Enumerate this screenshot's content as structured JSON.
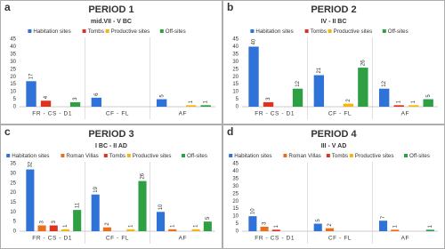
{
  "chart_data": [
    {
      "type": "bar",
      "label": "a",
      "title": "PERIOD 1",
      "subtitle": "mid.VII - V BC",
      "categories": [
        "FR - CS - D1",
        "CF - FL",
        "AF"
      ],
      "series": [
        {
          "name": "Habitation sites",
          "color": "#2f73d9",
          "values": [
            17,
            6,
            5
          ]
        },
        {
          "name": "Tombs",
          "color": "#e0301e",
          "values": [
            4,
            null,
            null
          ]
        },
        {
          "name": "Productive sites",
          "color": "#f5b50a",
          "values": [
            null,
            null,
            1
          ]
        },
        {
          "name": "Off-sites",
          "color": "#2ea043",
          "values": [
            3,
            null,
            1
          ]
        }
      ],
      "ylim": [
        0,
        45
      ],
      "yticks": [
        0,
        5,
        10,
        15,
        20,
        25,
        30,
        35,
        40,
        45
      ],
      "grid": false
    },
    {
      "type": "bar",
      "label": "b",
      "title": "PERIOD 2",
      "subtitle": "IV - II BC",
      "categories": [
        "FR - CS - D1",
        "CF - FL",
        "AF"
      ],
      "series": [
        {
          "name": "Habitation sites",
          "color": "#2f73d9",
          "values": [
            40,
            21,
            12
          ]
        },
        {
          "name": "Tombs",
          "color": "#e0301e",
          "values": [
            3,
            null,
            1
          ]
        },
        {
          "name": "Productive sites",
          "color": "#f5b50a",
          "values": [
            null,
            2,
            1
          ]
        },
        {
          "name": "Off-sites",
          "color": "#2ea043",
          "values": [
            12,
            26,
            5
          ]
        }
      ],
      "ylim": [
        0,
        45
      ],
      "yticks": [
        0,
        5,
        10,
        15,
        20,
        25,
        30,
        35,
        40,
        45
      ],
      "grid": false
    },
    {
      "type": "bar",
      "label": "c",
      "title": "PERIOD 3",
      "subtitle": "I BC - II AD",
      "categories": [
        "FR - CS - D1",
        "CF - FL",
        "AF"
      ],
      "series": [
        {
          "name": "Habitation sites",
          "color": "#2f73d9",
          "values": [
            32,
            19,
            10
          ]
        },
        {
          "name": "Roman Villas",
          "color": "#e8701a",
          "values": [
            3,
            2,
            1
          ]
        },
        {
          "name": "Tombs",
          "color": "#e0301e",
          "values": [
            3,
            null,
            null
          ]
        },
        {
          "name": "Productive sites",
          "color": "#f5b50a",
          "values": [
            1,
            1,
            1
          ]
        },
        {
          "name": "Off-sites",
          "color": "#2ea043",
          "values": [
            11,
            26,
            5
          ]
        }
      ],
      "ylim": [
        0,
        35
      ],
      "yticks": [
        0,
        5,
        10,
        15,
        20,
        25,
        30,
        35
      ],
      "grid": false
    },
    {
      "type": "bar",
      "label": "d",
      "title": "PERIOD 4",
      "subtitle": "III - V AD",
      "categories": [
        "FR - CS - D1",
        "CF - FL",
        "AF"
      ],
      "series": [
        {
          "name": "Habitation sites",
          "color": "#2f73d9",
          "values": [
            10,
            5,
            7
          ]
        },
        {
          "name": "Roman Villas",
          "color": "#e8701a",
          "values": [
            3,
            2,
            1
          ]
        },
        {
          "name": "Tombs",
          "color": "#e0301e",
          "values": [
            1,
            null,
            null
          ]
        },
        {
          "name": "Productive sites",
          "color": "#f5b50a",
          "values": [
            null,
            null,
            null
          ]
        },
        {
          "name": "Off-sites",
          "color": "#2ea043",
          "values": [
            null,
            null,
            1
          ]
        }
      ],
      "ylim": [
        0,
        45
      ],
      "yticks": [
        0,
        5,
        10,
        15,
        20,
        25,
        30,
        35,
        40,
        45
      ],
      "grid": false
    }
  ]
}
